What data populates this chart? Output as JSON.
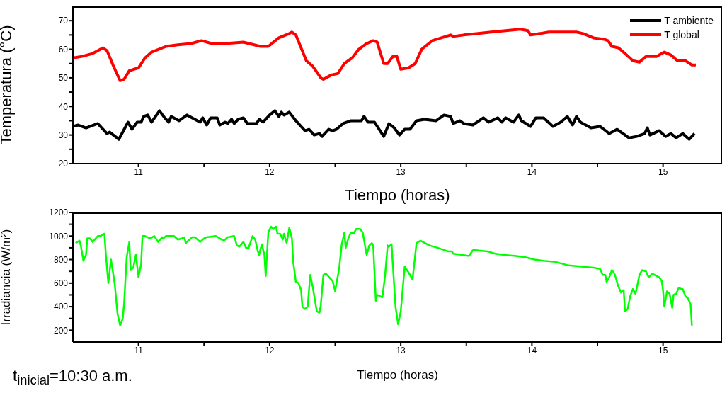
{
  "chart_data": [
    {
      "type": "line",
      "ylabel": "Temperatura (°C)",
      "xlabel": "Tiempo (horas)",
      "xlim": [
        10.5,
        15.45
      ],
      "xticks": [
        11,
        {
          "value": 11.5,
          "label": null
        },
        12,
        {
          "value": 12.5,
          "label": null
        },
        13,
        {
          "value": 13.5,
          "label": null
        },
        14,
        {
          "value": 14.5,
          "label": null
        },
        15
      ],
      "ylim": [
        20,
        75
      ],
      "yticks": [
        20,
        {
          "value": 25,
          "label": null
        },
        30,
        {
          "value": 35,
          "label": null
        },
        40,
        {
          "value": 45,
          "label": null
        },
        50,
        {
          "value": 55,
          "label": null
        },
        60,
        {
          "value": 65,
          "label": null
        },
        70
      ],
      "legend": "top right",
      "marker": "none",
      "line_style": "solid",
      "series": [
        {
          "name": "T ambiente",
          "color": "#000000",
          "x": [
            10.5,
            10.54,
            10.6,
            10.69,
            10.76,
            10.78,
            10.85,
            10.92,
            10.95,
            10.99,
            11.02,
            11.04,
            11.07,
            11.1,
            11.16,
            11.2,
            11.23,
            11.25,
            11.31,
            11.37,
            11.41,
            11.47,
            11.49,
            11.52,
            11.55,
            11.6,
            11.62,
            11.66,
            11.68,
            11.71,
            11.73,
            11.76,
            11.8,
            11.83,
            11.9,
            11.92,
            11.95,
            12.0,
            12.04,
            12.07,
            12.09,
            12.11,
            12.15,
            12.2,
            12.27,
            12.3,
            12.34,
            12.38,
            12.4,
            12.45,
            12.48,
            12.51,
            12.56,
            12.62,
            12.7,
            12.72,
            12.75,
            12.8,
            12.87,
            12.91,
            12.95,
            12.99,
            13.03,
            13.07,
            13.12,
            13.18,
            13.27,
            13.33,
            13.38,
            13.4,
            13.45,
            13.48,
            13.55,
            13.63,
            13.67,
            13.74,
            13.77,
            13.8,
            13.86,
            13.9,
            13.92,
            13.99,
            14.03,
            14.09,
            14.16,
            14.22,
            14.27,
            14.31,
            14.34,
            14.37,
            14.45,
            14.52,
            14.59,
            14.65,
            14.74,
            14.8,
            14.86,
            14.88,
            14.9,
            14.97,
            15.02,
            15.06,
            15.1,
            15.15,
            15.2,
            15.24
          ],
          "values": [
            33,
            33.5,
            32.5,
            34,
            30.5,
            31,
            28.5,
            34.5,
            32,
            34.5,
            34.5,
            36.5,
            37,
            34.5,
            38.5,
            36,
            34.5,
            36.5,
            35,
            37,
            36,
            34.5,
            36,
            33.5,
            36,
            36,
            33.5,
            34.5,
            34,
            35.5,
            34,
            35.5,
            36,
            34,
            34,
            35.5,
            34.5,
            37,
            38.5,
            36.5,
            38,
            37,
            38,
            35,
            31.5,
            32,
            30,
            30.5,
            29.5,
            32,
            31.5,
            32,
            34,
            35,
            35,
            36.5,
            34.5,
            34.5,
            29.5,
            34,
            32.5,
            30,
            32,
            32,
            35,
            35.5,
            35,
            37,
            36.5,
            34,
            35,
            34,
            33.5,
            36,
            34.5,
            36,
            34.5,
            36,
            34.5,
            37,
            35,
            33,
            36,
            36,
            33,
            34.5,
            36.5,
            33.5,
            36.5,
            34.5,
            32.5,
            33,
            30.5,
            32,
            29,
            29.5,
            30.5,
            32.5,
            30,
            31.5,
            29.5,
            30.5,
            29,
            30.5,
            28.5,
            30.5
          ]
        },
        {
          "name": "T global",
          "color": "#ff0000",
          "x": [
            10.5,
            10.57,
            10.65,
            10.73,
            10.76,
            10.81,
            10.86,
            10.89,
            10.93,
            11.0,
            11.05,
            11.1,
            11.21,
            11.29,
            11.4,
            11.48,
            11.56,
            11.66,
            11.8,
            11.93,
            11.99,
            12.07,
            12.15,
            12.17,
            12.2,
            12.28,
            12.33,
            12.39,
            12.41,
            12.47,
            12.52,
            12.57,
            12.63,
            12.68,
            12.74,
            12.79,
            12.82,
            12.87,
            12.9,
            12.94,
            12.97,
            13.0,
            13.06,
            13.11,
            13.16,
            13.24,
            13.38,
            13.4,
            13.48,
            13.59,
            13.69,
            13.8,
            13.91,
            13.97,
            13.99,
            14.13,
            14.23,
            14.34,
            14.39,
            14.47,
            14.55,
            14.58,
            14.61,
            14.66,
            14.71,
            14.77,
            14.82,
            14.87,
            14.95,
            15.01,
            15.06,
            15.11,
            15.17,
            15.22,
            15.25
          ],
          "values": [
            57,
            57.5,
            58.5,
            60.5,
            59.5,
            54,
            49,
            49.5,
            52.5,
            53.5,
            57,
            59,
            61,
            61.5,
            62,
            63,
            62,
            62,
            62.5,
            61,
            61,
            64,
            65.5,
            66,
            65,
            56,
            54,
            50,
            49.5,
            51,
            51.5,
            55,
            57,
            60,
            62,
            63,
            62.5,
            55,
            55,
            57.5,
            57.5,
            53,
            53.5,
            55,
            60,
            63,
            65,
            64.5,
            65,
            65.5,
            66,
            66.5,
            67,
            66.5,
            65,
            66,
            66,
            66,
            65.5,
            64,
            63.5,
            63,
            61,
            60.5,
            58.5,
            56,
            55.5,
            57.5,
            57.5,
            59,
            58,
            56,
            56,
            54.5,
            54.5
          ]
        }
      ]
    },
    {
      "type": "line",
      "ylabel": "Irradiancia (W/m²)",
      "xlabel": "Tiempo (horas)",
      "xlim": [
        10.5,
        15.45
      ],
      "xticks": [
        11,
        {
          "value": 11.5,
          "label": null
        },
        12,
        {
          "value": 12.5,
          "label": null
        },
        13,
        {
          "value": 13.5,
          "label": null
        },
        14,
        {
          "value": 14.5,
          "label": null
        },
        15
      ],
      "ylim": [
        100,
        1200
      ],
      "yticks": [
        200,
        {
          "value": 300,
          "label": null
        },
        400,
        {
          "value": 500,
          "label": null
        },
        600,
        {
          "value": 700,
          "label": null
        },
        800,
        {
          "value": 900,
          "label": null
        },
        1000,
        {
          "value": 1100,
          "label": null
        },
        1200
      ],
      "marker": "none",
      "line_style": "solid",
      "annotations": [
        "t$_{inicial}$=10:30 a.m."
      ],
      "series": [
        {
          "color": "#00ff00",
          "x": [
            10.52,
            10.55,
            10.56,
            10.58,
            10.6,
            10.61,
            10.63,
            10.65,
            10.69,
            10.71,
            10.74,
            10.75,
            10.77,
            10.79,
            10.81,
            10.82,
            10.84,
            10.86,
            10.88,
            10.89,
            10.91,
            10.93,
            10.94,
            10.96,
            10.98,
            11.0,
            11.02,
            11.03,
            11.05,
            11.09,
            11.12,
            11.15,
            11.18,
            11.19,
            11.21,
            11.27,
            11.3,
            11.33,
            11.35,
            11.36,
            11.41,
            11.43,
            11.47,
            11.5,
            11.52,
            11.59,
            11.65,
            11.68,
            11.73,
            11.75,
            11.77,
            11.8,
            11.82,
            11.84,
            11.87,
            11.89,
            11.91,
            11.92,
            11.94,
            11.96,
            11.97,
            11.99,
            12.01,
            12.03,
            12.05,
            12.06,
            12.08,
            12.1,
            12.11,
            12.13,
            12.15,
            12.17,
            12.18,
            12.2,
            12.22,
            12.24,
            12.25,
            12.27,
            12.29,
            12.31,
            12.33,
            12.36,
            12.38,
            12.39,
            12.41,
            12.43,
            12.47,
            12.48,
            12.5,
            12.51,
            12.53,
            12.55,
            12.57,
            12.58,
            12.6,
            12.62,
            12.64,
            12.66,
            12.69,
            12.71,
            12.74,
            12.76,
            12.78,
            12.79,
            12.81,
            12.82,
            12.86,
            12.88,
            12.9,
            12.91,
            12.93,
            12.94,
            12.96,
            12.98,
            13.0,
            13.03,
            13.06,
            13.09,
            13.12,
            13.15,
            13.22,
            13.28,
            13.36,
            13.39,
            13.4,
            13.47,
            13.52,
            13.55,
            13.57,
            13.66,
            13.72,
            13.79,
            13.88,
            13.95,
            14.02,
            14.09,
            14.18,
            14.28,
            14.38,
            14.48,
            14.52,
            14.54,
            14.56,
            14.57,
            14.59,
            14.61,
            14.63,
            14.66,
            14.68,
            14.7,
            14.71,
            14.73,
            14.75,
            14.77,
            14.79,
            14.8,
            14.82,
            14.84,
            14.87,
            14.89,
            14.92,
            14.95,
            14.97,
            14.99,
            15.0,
            15.01,
            15.03,
            15.05,
            15.07,
            15.08,
            15.1,
            15.12,
            15.14,
            15.15,
            15.17,
            15.19,
            15.21,
            15.22
          ],
          "values": [
            940,
            960,
            920,
            790,
            840,
            980,
            980,
            950,
            1000,
            1000,
            1020,
            860,
            600,
            800,
            660,
            580,
            340,
            240,
            300,
            420,
            820,
            950,
            710,
            730,
            840,
            650,
            760,
            1000,
            1000,
            980,
            1000,
            950,
            990,
            980,
            1000,
            1000,
            970,
            980,
            990,
            940,
            990,
            990,
            950,
            980,
            990,
            1000,
            960,
            990,
            1000,
            920,
            910,
            950,
            900,
            900,
            1000,
            970,
            870,
            840,
            930,
            840,
            660,
            1030,
            1080,
            1060,
            1080,
            1020,
            1020,
            970,
            1020,
            940,
            1070,
            980,
            780,
            610,
            600,
            540,
            400,
            380,
            400,
            670,
            560,
            360,
            350,
            410,
            670,
            680,
            630,
            620,
            530,
            600,
            720,
            930,
            1030,
            900,
            980,
            1030,
            1020,
            1060,
            1060,
            1030,
            840,
            920,
            940,
            920,
            450,
            500,
            480,
            660,
            920,
            910,
            930,
            750,
            400,
            250,
            360,
            740,
            690,
            630,
            940,
            960,
            920,
            900,
            870,
            870,
            850,
            840,
            830,
            880,
            880,
            870,
            850,
            840,
            830,
            820,
            800,
            790,
            780,
            750,
            740,
            730,
            720,
            670,
            670,
            610,
            650,
            710,
            680,
            570,
            520,
            540,
            360,
            380,
            490,
            550,
            510,
            560,
            670,
            710,
            700,
            650,
            680,
            660,
            650,
            620,
            540,
            400,
            530,
            510,
            390,
            500,
            510,
            560,
            550,
            550,
            490,
            470,
            420,
            240
          ]
        }
      ]
    }
  ]
}
